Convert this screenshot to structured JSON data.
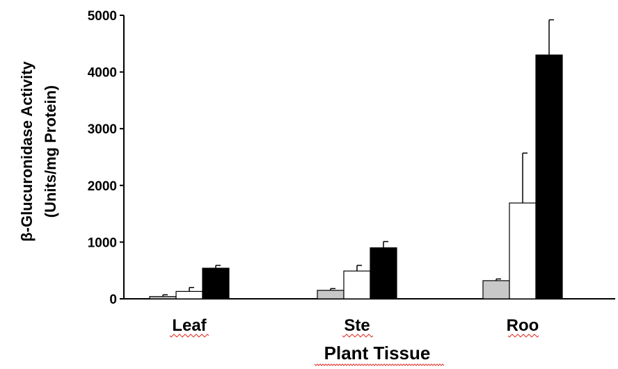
{
  "chart_data": {
    "type": "bar",
    "title": "",
    "xlabel": "Plant Tissue",
    "ylabel_line1": "β-Glucuronidase Activity",
    "ylabel_line2": "(Units/mg Protein)",
    "ylim": [
      0,
      5000
    ],
    "yticks": [
      0,
      1000,
      2000,
      3000,
      4000,
      5000
    ],
    "categories": [
      "Leaf",
      "Ste",
      "Roo"
    ],
    "series": [
      {
        "color": "#c8c8c8",
        "values": [
          40,
          150,
          320
        ],
        "errors": [
          30,
          30,
          30
        ]
      },
      {
        "color": "#ffffff",
        "values": [
          130,
          490,
          1690
        ],
        "errors": [
          70,
          100,
          880
        ]
      },
      {
        "color": "#000000",
        "values": [
          540,
          900,
          4300
        ],
        "errors": [
          50,
          110,
          620
        ]
      }
    ],
    "grid": false,
    "legend": "none"
  }
}
